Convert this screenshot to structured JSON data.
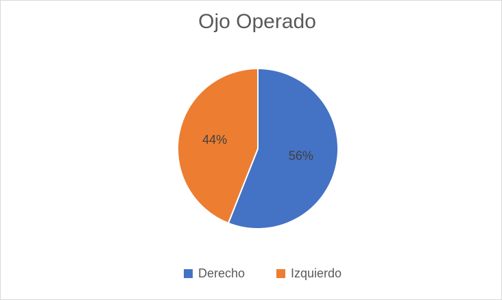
{
  "chart_data": {
    "type": "pie",
    "title": "Ojo Operado",
    "categories": [
      "Derecho",
      "Izquierdo"
    ],
    "values": [
      56,
      44
    ],
    "value_labels": [
      "56%",
      "44%"
    ],
    "colors": [
      "#4472c4",
      "#ed7d31"
    ],
    "legend": "bottom"
  }
}
